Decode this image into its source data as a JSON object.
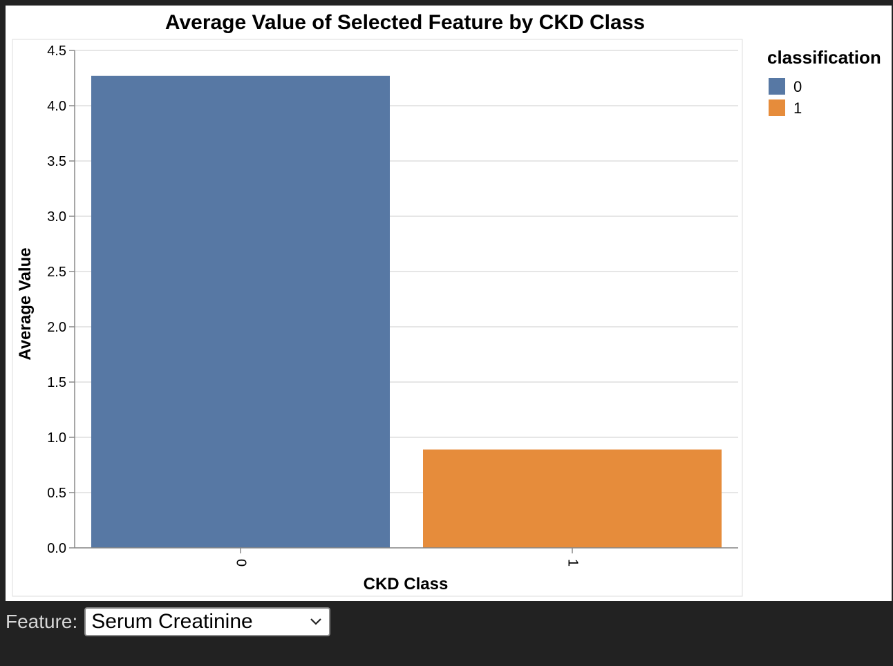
{
  "chart_data": {
    "type": "bar",
    "title": "Average Value of Selected Feature by CKD Class",
    "xlabel": "CKD Class",
    "ylabel": "Average Value",
    "categories": [
      "0",
      "1"
    ],
    "values": [
      4.27,
      0.89
    ],
    "colors": [
      "#5778a4",
      "#e68c3b"
    ],
    "ylim": [
      0,
      4.5
    ],
    "yticks": [
      "0.0",
      "0.5",
      "1.0",
      "1.5",
      "2.0",
      "2.5",
      "3.0",
      "3.5",
      "4.0",
      "4.5"
    ],
    "grid": true,
    "legend": {
      "title": "classification",
      "placement": "right",
      "items": [
        "0",
        "1"
      ]
    }
  },
  "controls": {
    "feature_label": "Feature:",
    "feature_value": "Serum Creatinine"
  }
}
